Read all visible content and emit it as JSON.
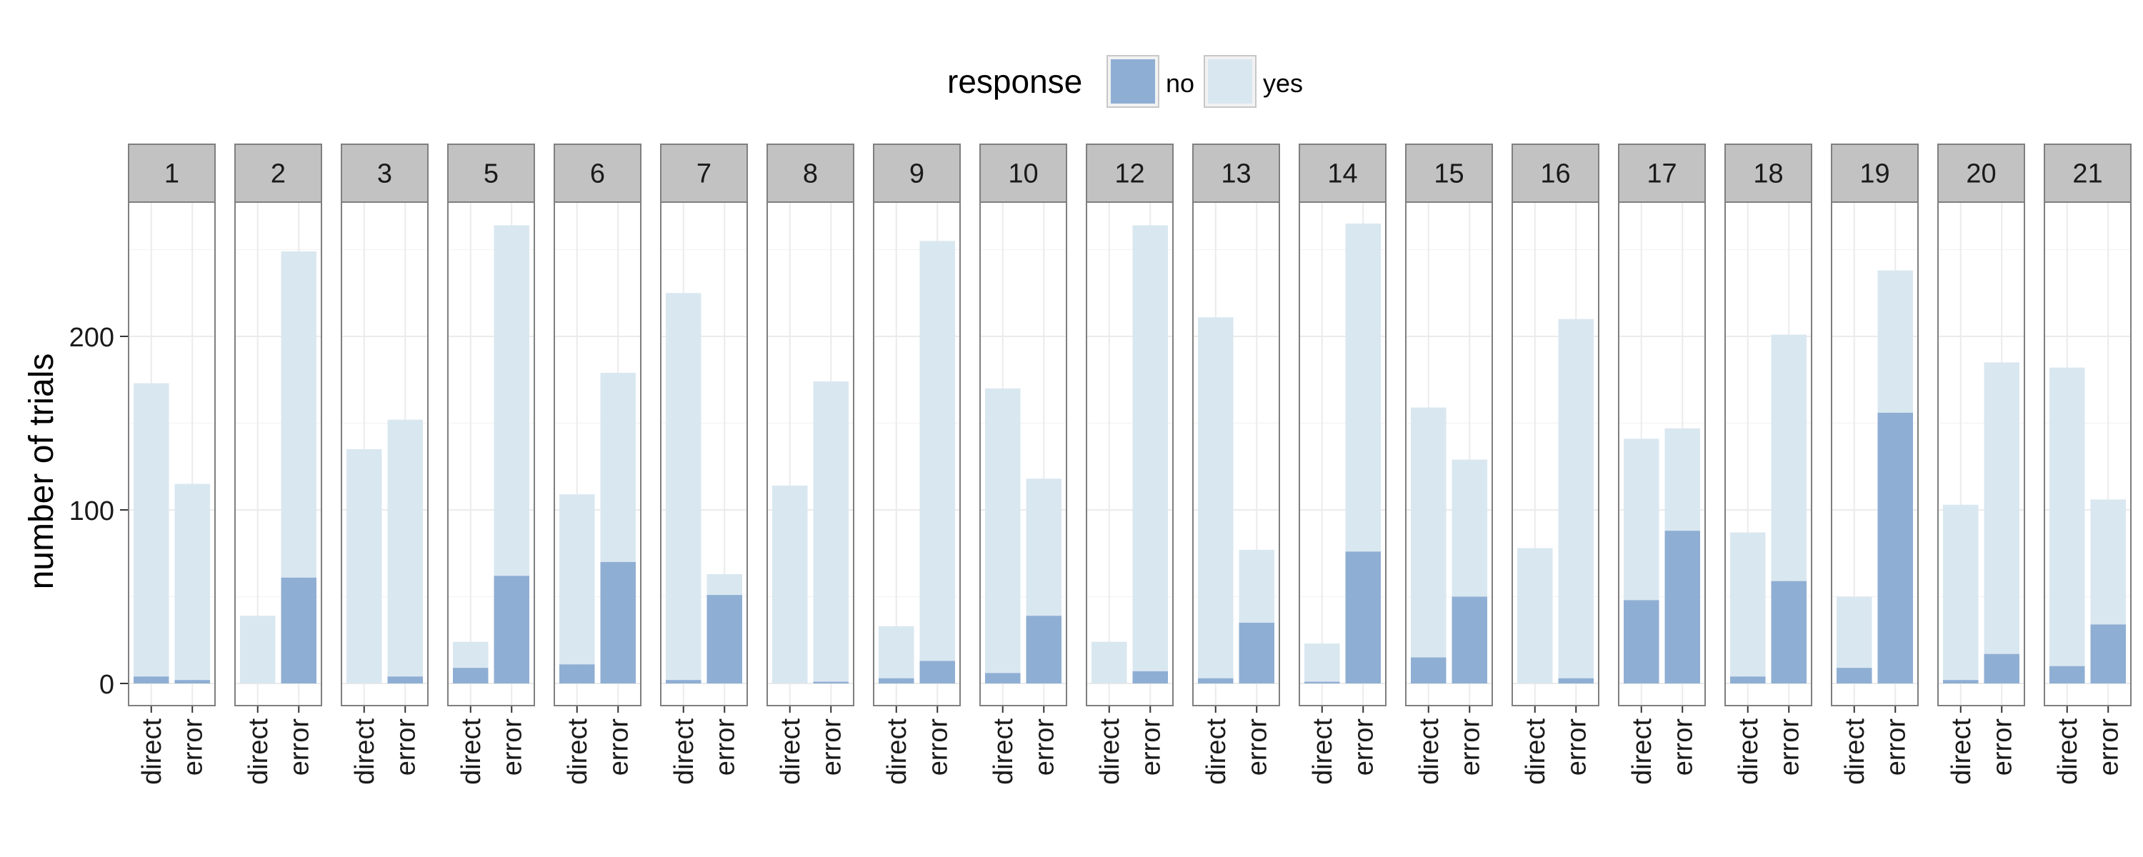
{
  "chart_data": {
    "type": "bar",
    "stacked": true,
    "faceted": true,
    "title": "",
    "xlabel": "",
    "ylabel": "number of trials",
    "ylim": [
      -12,
      280
    ],
    "yticks": [
      0,
      100,
      200
    ],
    "grid": true,
    "legend": {
      "title": "response",
      "position": "top",
      "entries": [
        {
          "label": "no",
          "color": "#8faed3"
        },
        {
          "label": "yes",
          "color": "#d9e7f0"
        }
      ]
    },
    "categories": [
      "direct",
      "error"
    ],
    "series_names": [
      "no",
      "yes"
    ],
    "colors": {
      "no": "#8faed3",
      "yes": "#d9e7f0",
      "strip": "#c2c2c2",
      "grid": "#ebebeb",
      "border": "#7f7f7f"
    },
    "facets": [
      {
        "label": "1",
        "values": [
          {
            "category": "direct",
            "no": 4,
            "yes": 169
          },
          {
            "category": "error",
            "no": 2,
            "yes": 113
          }
        ]
      },
      {
        "label": "2",
        "values": [
          {
            "category": "direct",
            "no": 0,
            "yes": 39
          },
          {
            "category": "error",
            "no": 61,
            "yes": 188
          }
        ]
      },
      {
        "label": "3",
        "values": [
          {
            "category": "direct",
            "no": 0,
            "yes": 135
          },
          {
            "category": "error",
            "no": 4,
            "yes": 148
          }
        ]
      },
      {
        "label": "5",
        "values": [
          {
            "category": "direct",
            "no": 9,
            "yes": 15
          },
          {
            "category": "error",
            "no": 62,
            "yes": 202
          }
        ]
      },
      {
        "label": "6",
        "values": [
          {
            "category": "direct",
            "no": 11,
            "yes": 98
          },
          {
            "category": "error",
            "no": 70,
            "yes": 109
          }
        ]
      },
      {
        "label": "7",
        "values": [
          {
            "category": "direct",
            "no": 2,
            "yes": 223
          },
          {
            "category": "error",
            "no": 51,
            "yes": 12
          }
        ]
      },
      {
        "label": "8",
        "values": [
          {
            "category": "direct",
            "no": 0,
            "yes": 114
          },
          {
            "category": "error",
            "no": 1,
            "yes": 173
          }
        ]
      },
      {
        "label": "9",
        "values": [
          {
            "category": "direct",
            "no": 3,
            "yes": 30
          },
          {
            "category": "error",
            "no": 13,
            "yes": 242
          }
        ]
      },
      {
        "label": "10",
        "values": [
          {
            "category": "direct",
            "no": 6,
            "yes": 164
          },
          {
            "category": "error",
            "no": 39,
            "yes": 79
          }
        ]
      },
      {
        "label": "12",
        "values": [
          {
            "category": "direct",
            "no": 0,
            "yes": 24
          },
          {
            "category": "error",
            "no": 7,
            "yes": 257
          }
        ]
      },
      {
        "label": "13",
        "values": [
          {
            "category": "direct",
            "no": 3,
            "yes": 208
          },
          {
            "category": "error",
            "no": 35,
            "yes": 42
          }
        ]
      },
      {
        "label": "14",
        "values": [
          {
            "category": "direct",
            "no": 1,
            "yes": 22
          },
          {
            "category": "error",
            "no": 76,
            "yes": 189
          }
        ]
      },
      {
        "label": "15",
        "values": [
          {
            "category": "direct",
            "no": 15,
            "yes": 144
          },
          {
            "category": "error",
            "no": 50,
            "yes": 79
          }
        ]
      },
      {
        "label": "16",
        "values": [
          {
            "category": "direct",
            "no": 0,
            "yes": 78
          },
          {
            "category": "error",
            "no": 3,
            "yes": 207
          }
        ]
      },
      {
        "label": "17",
        "values": [
          {
            "category": "direct",
            "no": 48,
            "yes": 93
          },
          {
            "category": "error",
            "no": 88,
            "yes": 59
          }
        ]
      },
      {
        "label": "18",
        "values": [
          {
            "category": "direct",
            "no": 4,
            "yes": 83
          },
          {
            "category": "error",
            "no": 59,
            "yes": 142
          }
        ]
      },
      {
        "label": "19",
        "values": [
          {
            "category": "direct",
            "no": 9,
            "yes": 41
          },
          {
            "category": "error",
            "no": 156,
            "yes": 82
          }
        ]
      },
      {
        "label": "20",
        "values": [
          {
            "category": "direct",
            "no": 2,
            "yes": 101
          },
          {
            "category": "error",
            "no": 17,
            "yes": 168
          }
        ]
      },
      {
        "label": "21",
        "values": [
          {
            "category": "direct",
            "no": 10,
            "yes": 172
          },
          {
            "category": "error",
            "no": 34,
            "yes": 72
          }
        ]
      }
    ]
  }
}
